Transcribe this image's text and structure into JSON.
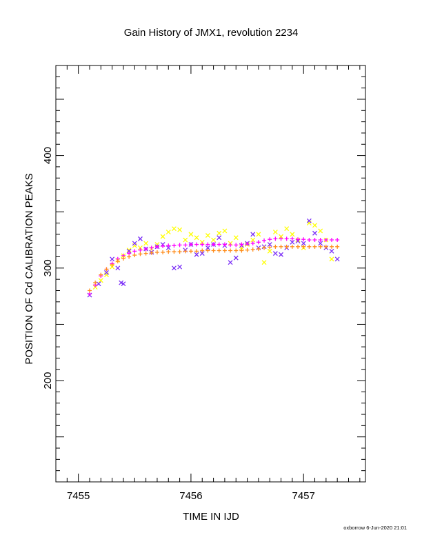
{
  "chart_data": {
    "type": "scatter",
    "title": "Gain History of JMX1, revolution 2234",
    "xlabel": "TIME IN IJD",
    "ylabel": "POSITION OF Cd CALIBRATION PEAKS",
    "xlim": [
      7454.8,
      7457.55
    ],
    "ylim": [
      110,
      480
    ],
    "x_ticks": [
      "7455",
      "7456",
      "7457"
    ],
    "y_ticks": [
      "200",
      "300",
      "400"
    ],
    "x_minor_step": 0.1,
    "y_minor_step": 10,
    "grid": false,
    "legend": "none",
    "footer": "oxborrow  6-Jun-2020 21:01",
    "series": [
      {
        "marker": "x",
        "color": "#ffff00",
        "points": [
          [
            7455.15,
            283
          ],
          [
            7455.2,
            289
          ],
          [
            7455.25,
            294
          ],
          [
            7455.3,
            301
          ],
          [
            7455.35,
            307
          ],
          [
            7455.4,
            311
          ],
          [
            7455.45,
            316
          ],
          [
            7455.5,
            320
          ],
          [
            7455.55,
            318
          ],
          [
            7455.6,
            322
          ],
          [
            7455.65,
            317
          ],
          [
            7455.7,
            321
          ],
          [
            7455.75,
            328
          ],
          [
            7455.8,
            332
          ],
          [
            7455.85,
            335
          ],
          [
            7455.9,
            334
          ],
          [
            7455.95,
            325
          ],
          [
            7456.0,
            330
          ],
          [
            7456.05,
            327
          ],
          [
            7456.1,
            323
          ],
          [
            7456.15,
            329
          ],
          [
            7456.2,
            325
          ],
          [
            7456.25,
            331
          ],
          [
            7456.3,
            333
          ],
          [
            7456.35,
            322
          ],
          [
            7456.4,
            327
          ],
          [
            7456.45,
            318
          ],
          [
            7456.5,
            321
          ],
          [
            7456.55,
            325
          ],
          [
            7456.6,
            330
          ],
          [
            7456.65,
            305
          ],
          [
            7456.7,
            315
          ],
          [
            7456.75,
            332
          ],
          [
            7456.8,
            328
          ],
          [
            7456.85,
            335
          ],
          [
            7456.9,
            330
          ],
          [
            7456.95,
            325
          ],
          [
            7457.0,
            318
          ],
          [
            7457.05,
            340
          ],
          [
            7457.1,
            338
          ],
          [
            7457.15,
            333
          ],
          [
            7457.2,
            325
          ],
          [
            7457.25,
            308
          ]
        ]
      },
      {
        "marker": "x",
        "color": "#7b2ff7",
        "points": [
          [
            7455.1,
            276
          ],
          [
            7455.18,
            286
          ],
          [
            7455.25,
            296
          ],
          [
            7455.3,
            308
          ],
          [
            7455.35,
            300
          ],
          [
            7455.38,
            287
          ],
          [
            7455.4,
            286
          ],
          [
            7455.45,
            315
          ],
          [
            7455.5,
            322
          ],
          [
            7455.55,
            326
          ],
          [
            7455.6,
            317
          ],
          [
            7455.65,
            314
          ],
          [
            7455.7,
            319
          ],
          [
            7455.75,
            321
          ],
          [
            7455.8,
            318
          ],
          [
            7455.85,
            300
          ],
          [
            7455.9,
            301
          ],
          [
            7455.95,
            316
          ],
          [
            7456.0,
            321
          ],
          [
            7456.05,
            312
          ],
          [
            7456.1,
            313
          ],
          [
            7456.15,
            318
          ],
          [
            7456.2,
            321
          ],
          [
            7456.25,
            327
          ],
          [
            7456.3,
            320
          ],
          [
            7456.35,
            305
          ],
          [
            7456.4,
            309
          ],
          [
            7456.45,
            320
          ],
          [
            7456.5,
            322
          ],
          [
            7456.55,
            330
          ],
          [
            7456.6,
            318
          ],
          [
            7456.65,
            319
          ],
          [
            7456.7,
            321
          ],
          [
            7456.75,
            313
          ],
          [
            7456.8,
            312
          ],
          [
            7456.85,
            318
          ],
          [
            7456.9,
            323
          ],
          [
            7456.95,
            324
          ],
          [
            7457.0,
            322
          ],
          [
            7457.05,
            342
          ],
          [
            7457.1,
            331
          ],
          [
            7457.15,
            322
          ],
          [
            7457.2,
            318
          ],
          [
            7457.25,
            315
          ],
          [
            7457.3,
            308
          ]
        ]
      },
      {
        "marker": "+",
        "color": "#ff00ff",
        "points": [
          [
            7455.1,
            277
          ],
          [
            7455.15,
            285
          ],
          [
            7455.2,
            293
          ],
          [
            7455.25,
            299
          ],
          [
            7455.3,
            304
          ],
          [
            7455.35,
            308
          ],
          [
            7455.4,
            311
          ],
          [
            7455.45,
            313
          ],
          [
            7455.5,
            315
          ],
          [
            7455.55,
            316
          ],
          [
            7455.6,
            317
          ],
          [
            7455.65,
            318
          ],
          [
            7455.7,
            319
          ],
          [
            7455.75,
            319.5
          ],
          [
            7455.8,
            320
          ],
          [
            7455.85,
            320
          ],
          [
            7455.9,
            320.5
          ],
          [
            7455.95,
            320.5
          ],
          [
            7456.0,
            321
          ],
          [
            7456.05,
            321
          ],
          [
            7456.1,
            321
          ],
          [
            7456.15,
            321
          ],
          [
            7456.2,
            321
          ],
          [
            7456.25,
            321
          ],
          [
            7456.3,
            321
          ],
          [
            7456.35,
            320.5
          ],
          [
            7456.4,
            320.5
          ],
          [
            7456.45,
            321
          ],
          [
            7456.5,
            321.5
          ],
          [
            7456.55,
            322
          ],
          [
            7456.6,
            323
          ],
          [
            7456.65,
            324.5
          ],
          [
            7456.7,
            325.5
          ],
          [
            7456.75,
            326
          ],
          [
            7456.8,
            326
          ],
          [
            7456.85,
            326
          ],
          [
            7456.9,
            326
          ],
          [
            7456.95,
            325.5
          ],
          [
            7457.0,
            325.5
          ],
          [
            7457.05,
            325
          ],
          [
            7457.1,
            325
          ],
          [
            7457.15,
            325
          ],
          [
            7457.2,
            325
          ],
          [
            7457.25,
            325
          ],
          [
            7457.3,
            325
          ]
        ]
      },
      {
        "marker": "+",
        "color": "#ff8c1a",
        "points": [
          [
            7455.1,
            280
          ],
          [
            7455.15,
            287
          ],
          [
            7455.2,
            294
          ],
          [
            7455.25,
            299
          ],
          [
            7455.3,
            303
          ],
          [
            7455.35,
            306
          ],
          [
            7455.4,
            308.5
          ],
          [
            7455.45,
            310
          ],
          [
            7455.5,
            311.5
          ],
          [
            7455.55,
            312.5
          ],
          [
            7455.6,
            313
          ],
          [
            7455.65,
            313.5
          ],
          [
            7455.7,
            314
          ],
          [
            7455.75,
            314
          ],
          [
            7455.8,
            314.5
          ],
          [
            7455.85,
            314.5
          ],
          [
            7455.9,
            314.5
          ],
          [
            7455.95,
            315
          ],
          [
            7456.0,
            315
          ],
          [
            7456.05,
            315
          ],
          [
            7456.1,
            315.5
          ],
          [
            7456.15,
            315.5
          ],
          [
            7456.2,
            315.5
          ],
          [
            7456.25,
            315.5
          ],
          [
            7456.3,
            315.5
          ],
          [
            7456.35,
            315.5
          ],
          [
            7456.4,
            315.5
          ],
          [
            7456.45,
            315.5
          ],
          [
            7456.5,
            316
          ],
          [
            7456.55,
            316.5
          ],
          [
            7456.6,
            317
          ],
          [
            7456.65,
            318
          ],
          [
            7456.7,
            318.5
          ],
          [
            7456.75,
            319
          ],
          [
            7456.8,
            319
          ],
          [
            7456.85,
            319
          ],
          [
            7456.9,
            319
          ],
          [
            7456.95,
            319
          ],
          [
            7457.0,
            319
          ],
          [
            7457.05,
            319
          ],
          [
            7457.1,
            319
          ],
          [
            7457.15,
            319
          ],
          [
            7457.2,
            319
          ],
          [
            7457.25,
            319
          ],
          [
            7457.3,
            319
          ]
        ]
      }
    ]
  }
}
